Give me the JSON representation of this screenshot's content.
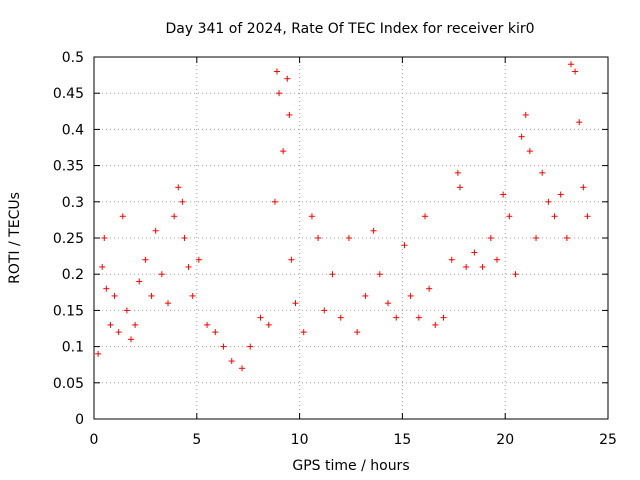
{
  "chart_data": {
    "type": "scatter",
    "title": "Day 341 of 2024, Rate Of TEC Index for receiver kir0",
    "xlabel": "GPS time / hours",
    "ylabel": "ROTI / TECUs",
    "xlim": [
      0,
      25
    ],
    "ylim": [
      0,
      0.5
    ],
    "x_ticks": [
      "0",
      "5",
      "10",
      "15",
      "20",
      "25"
    ],
    "y_ticks": [
      "0",
      "0.05",
      "0.1",
      "0.15",
      "0.2",
      "0.25",
      "0.3",
      "0.35",
      "0.4",
      "0.45",
      "0.5"
    ],
    "grid": true,
    "marker": "+",
    "color": "#ff0000",
    "series": [
      {
        "x": [
          0.2,
          0.4,
          0.5,
          0.6,
          0.8,
          1.0,
          1.2,
          1.4,
          1.6,
          1.8,
          2.0,
          2.2,
          2.5,
          2.8,
          3.0,
          3.3,
          3.6,
          3.9,
          4.1,
          4.3,
          4.4,
          4.6,
          4.8,
          5.1,
          5.5,
          5.9,
          6.3,
          6.7,
          7.2,
          7.6,
          8.1,
          8.5,
          8.8,
          8.9,
          9.0,
          9.2,
          9.4,
          9.5,
          9.6,
          9.8,
          10.2,
          10.6,
          10.9,
          11.2,
          11.6,
          12.0,
          12.4,
          12.8,
          13.2,
          13.6,
          13.9,
          14.3,
          14.7,
          15.1,
          15.4,
          15.8,
          16.1,
          16.3,
          16.6,
          17.0,
          17.4,
          17.7,
          17.8,
          18.1,
          18.5,
          18.9,
          19.3,
          19.6,
          19.9,
          20.2,
          20.5,
          20.8,
          21.0,
          21.2,
          21.5,
          21.8,
          22.1,
          22.4,
          22.7,
          23.0,
          23.2,
          23.4,
          23.6,
          23.8,
          24.0
        ],
        "y": [
          0.09,
          0.21,
          0.25,
          0.18,
          0.13,
          0.17,
          0.12,
          0.28,
          0.15,
          0.11,
          0.13,
          0.19,
          0.22,
          0.17,
          0.26,
          0.2,
          0.16,
          0.28,
          0.32,
          0.3,
          0.25,
          0.21,
          0.17,
          0.22,
          0.13,
          0.12,
          0.1,
          0.08,
          0.07,
          0.1,
          0.14,
          0.13,
          0.3,
          0.48,
          0.45,
          0.37,
          0.47,
          0.42,
          0.22,
          0.16,
          0.12,
          0.28,
          0.25,
          0.15,
          0.2,
          0.14,
          0.25,
          0.12,
          0.17,
          0.26,
          0.2,
          0.16,
          0.14,
          0.24,
          0.17,
          0.14,
          0.28,
          0.18,
          0.13,
          0.14,
          0.22,
          0.34,
          0.32,
          0.21,
          0.23,
          0.21,
          0.25,
          0.22,
          0.31,
          0.28,
          0.2,
          0.39,
          0.42,
          0.37,
          0.25,
          0.34,
          0.3,
          0.28,
          0.31,
          0.25,
          0.49,
          0.48,
          0.41,
          0.32,
          0.28
        ]
      }
    ]
  }
}
